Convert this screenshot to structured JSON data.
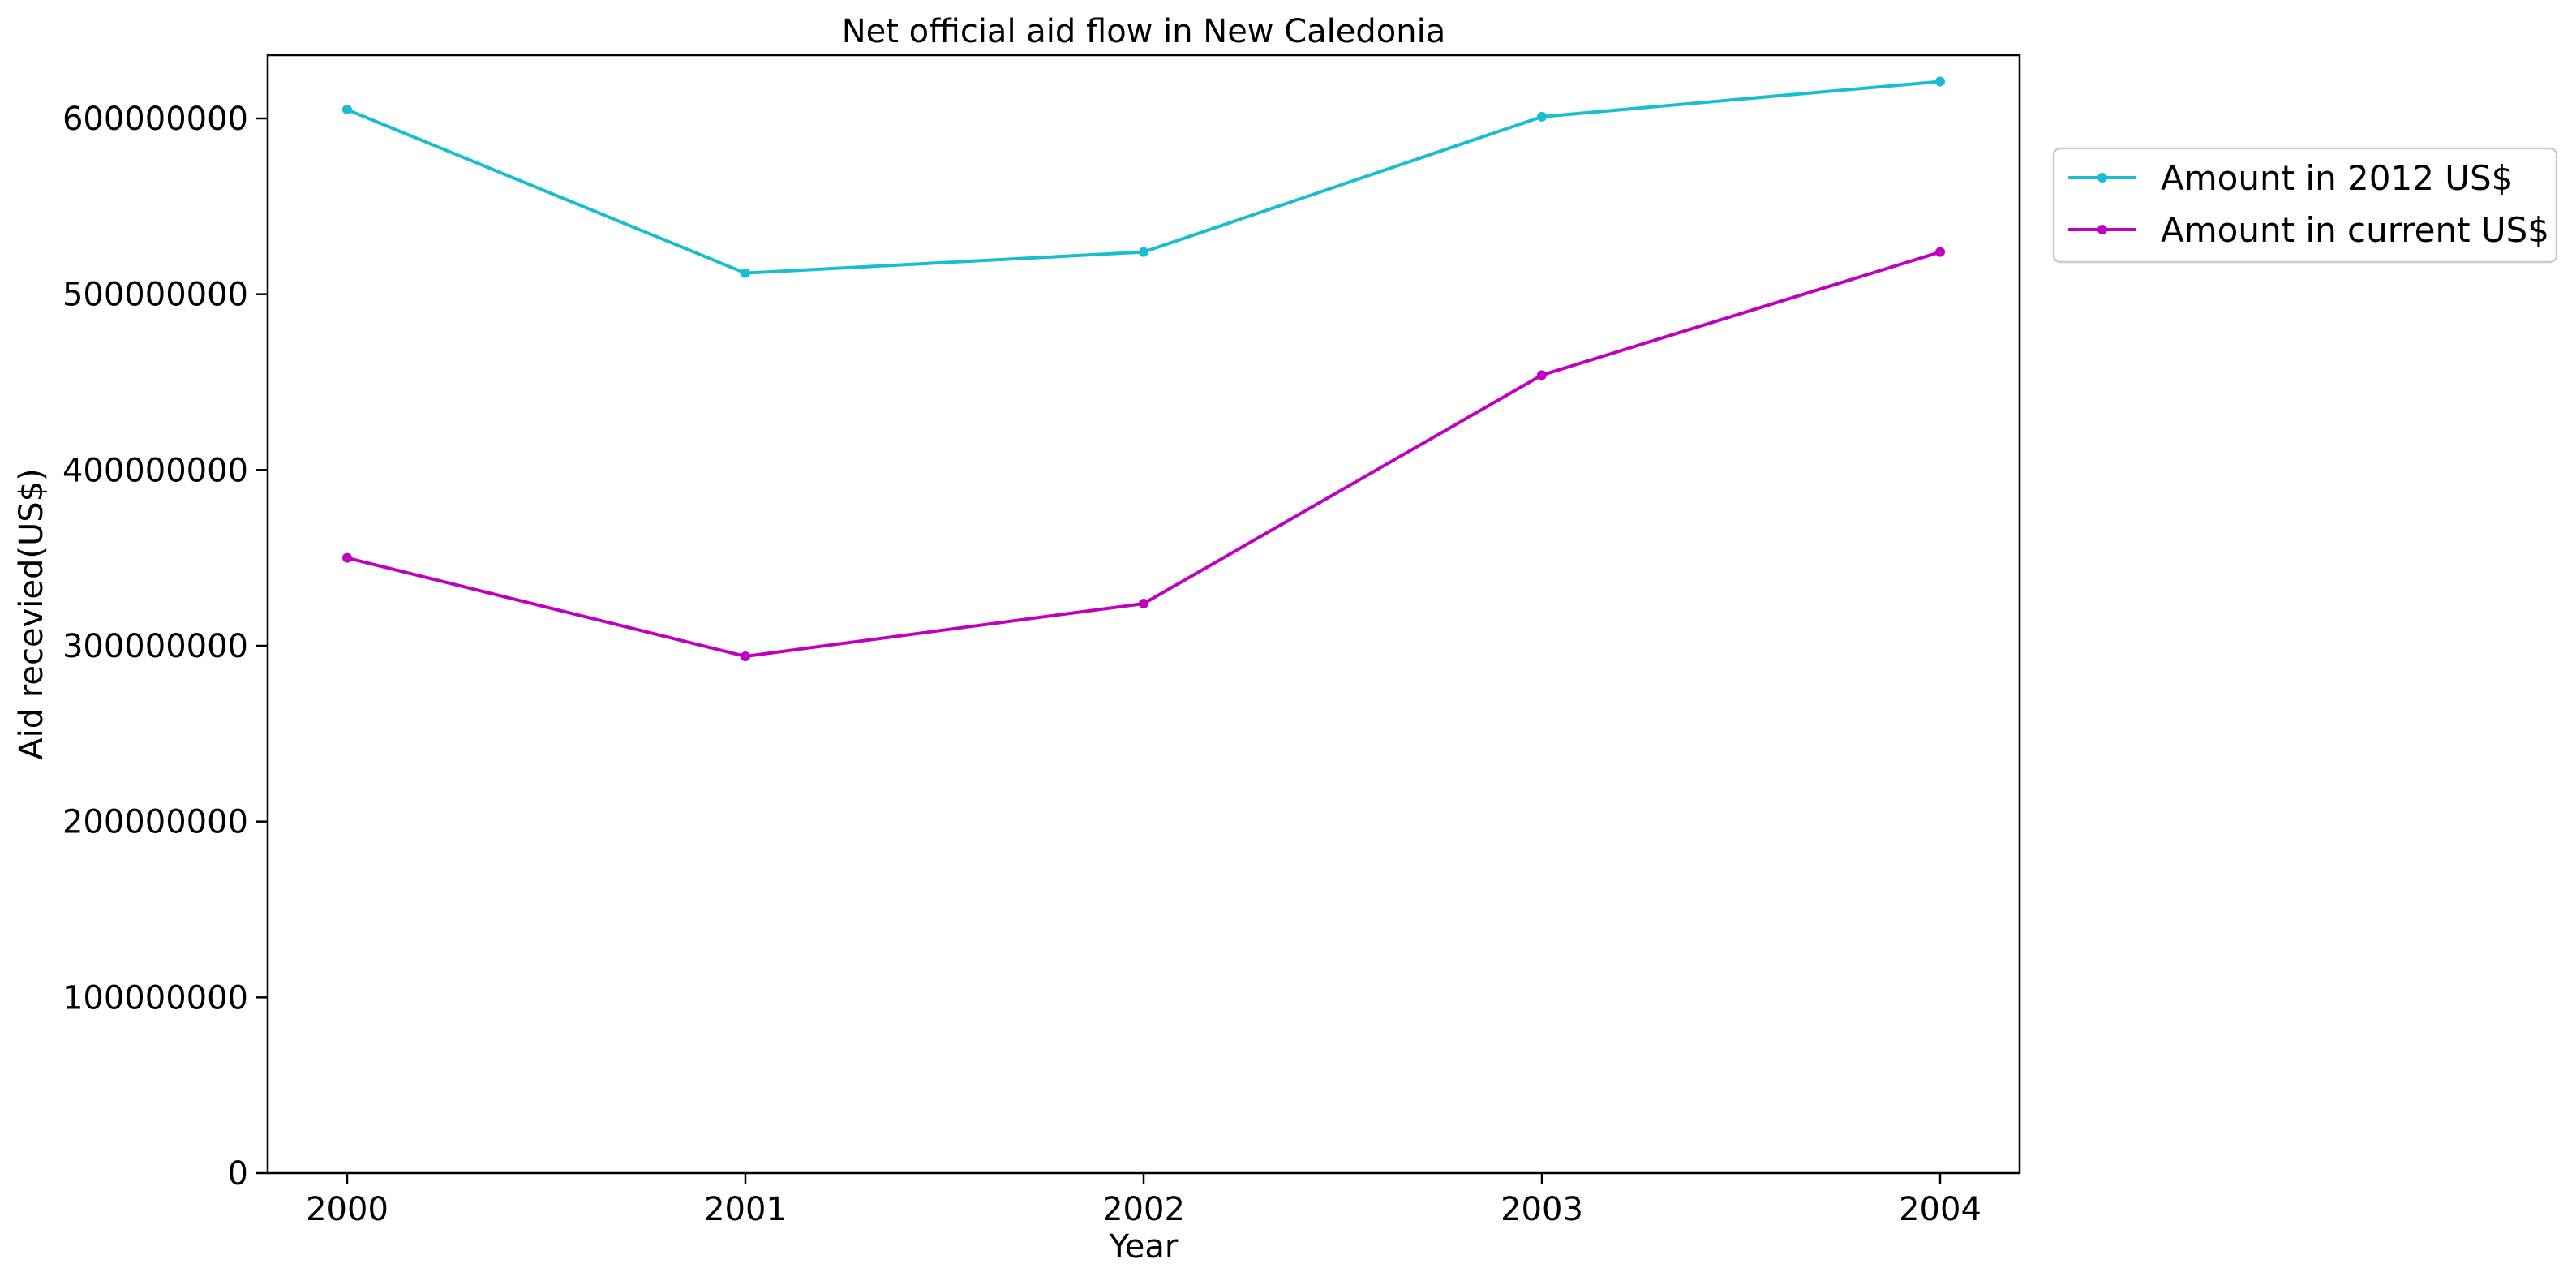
{
  "chart_data": {
    "type": "line",
    "title": "Net official aid flow in New Caledonia",
    "xlabel": "Year",
    "ylabel": "Aid recevied(US$)",
    "categories": [
      "2000",
      "2001",
      "2002",
      "2003",
      "2004"
    ],
    "y_ticks": [
      "0",
      "100000000",
      "200000000",
      "300000000",
      "400000000",
      "500000000",
      "600000000"
    ],
    "ylim": [
      0,
      636000000
    ],
    "grid": false,
    "legend_position": "outside-right-top",
    "series": [
      {
        "name": "Amount in 2012 US$",
        "color": "#17becf",
        "values": [
          605000000,
          512000000,
          524000000,
          601000000,
          621000000
        ]
      },
      {
        "name": "Amount in current US$",
        "color": "#bf00bf",
        "values": [
          350000000,
          294000000,
          324000000,
          454000000,
          524000000
        ]
      }
    ]
  }
}
